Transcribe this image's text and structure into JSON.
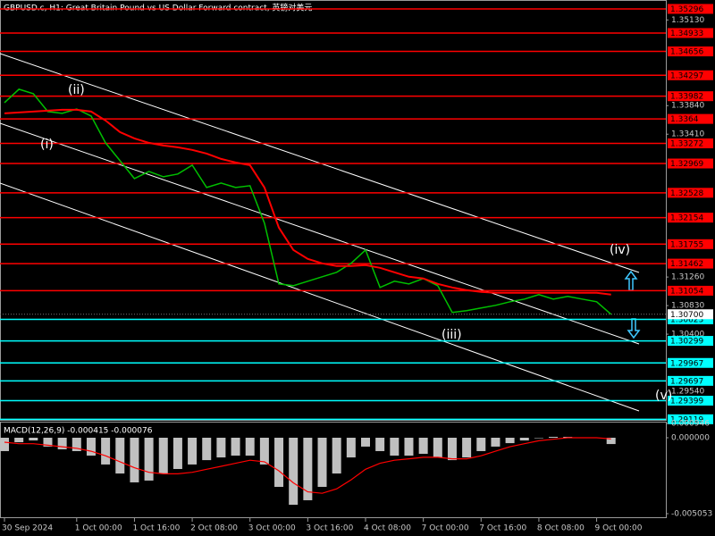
{
  "chart_data": [
    {
      "type": "line",
      "title": "GBPUSD.c, H1:  Great Britain Pound vs US Dollar Forward contract, 英镑对美元",
      "categories": [
        "30 Sep 2024",
        null,
        null,
        null,
        null,
        "1 Oct 00:00",
        null,
        null,
        null,
        "1 Oct 16:00",
        null,
        null,
        null,
        "2 Oct 08:00",
        null,
        null,
        null,
        "3 Oct 00:00",
        null,
        null,
        null,
        "3 Oct 16:00",
        null,
        null,
        null,
        "4 Oct 08:00",
        null,
        null,
        null,
        "7 Oct 00:00",
        null,
        null,
        null,
        "7 Oct 16:00",
        null,
        null,
        null,
        "8 Oct 08:00",
        null,
        null,
        null,
        "9 Oct 00:00",
        null
      ],
      "series": [
        {
          "color": "#00c000",
          "values": [
            1.33885,
            1.34086,
            1.34019,
            1.3375,
            1.33723,
            1.3379,
            1.33683,
            1.3328,
            1.33011,
            1.32742,
            1.3285,
            1.32769,
            1.3281,
            1.32944,
            1.32608,
            1.32675,
            1.32608,
            1.32635,
            1.32071,
            1.31157,
            1.3113,
            1.31197,
            1.31264,
            1.31331,
            1.31466,
            1.31667,
            1.31103,
            1.31197,
            1.31157,
            1.31237,
            1.3113,
            1.30727,
            1.30754,
            1.30794,
            1.30834,
            1.30888,
            1.30928,
            1.30995,
            1.30928,
            1.30969,
            1.30928,
            1.30888,
            1.307
          ]
        },
        {
          "color": "#ff0000",
          "values": [
            1.33723,
            1.33737,
            1.3375,
            1.33764,
            1.33777,
            1.33777,
            1.3375,
            1.33616,
            1.33441,
            1.33347,
            1.3328,
            1.3324,
            1.33213,
            1.33173,
            1.33119,
            1.33038,
            1.32984,
            1.32944,
            1.32608,
            1.32004,
            1.31668,
            1.31533,
            1.31466,
            1.31426,
            1.31426,
            1.31439,
            1.31399,
            1.31332,
            1.31264,
            1.31238,
            1.31157,
            1.31103,
            1.31063,
            1.31036,
            1.31023,
            1.31023,
            1.31023,
            1.31023,
            1.31023,
            1.31023,
            1.31023,
            1.31023,
            1.30996
          ]
        }
      ],
      "ylim": [
        1.2911,
        1.3543
      ],
      "yticks": [
        {
          "value": 1.3513,
          "label": "1.35130"
        },
        {
          "value": 1.3384,
          "label": "1.33840"
        },
        {
          "value": 1.3341,
          "label": "1.33410"
        },
        {
          "value": 1.3126,
          "label": "1.31260"
        },
        {
          "value": 1.3083,
          "label": "1.30830"
        },
        {
          "value": 1.304,
          "label": "1.30400"
        },
        {
          "value": 1.2954,
          "label": "1.29540"
        }
      ],
      "resistance_color": "#ff0000",
      "resistance_levels": [
        1.35296,
        1.34933,
        1.34656,
        1.34297,
        1.33982,
        1.3364,
        1.33272,
        1.32969,
        1.32528,
        1.32154,
        1.31755,
        1.31462,
        1.31054
      ],
      "support_color": "#00ffff",
      "support_levels": [
        1.30623,
        1.30299,
        1.29967,
        1.29697,
        1.29399,
        1.29119
      ],
      "current_price": {
        "value": 1.307,
        "label": "1.30700"
      },
      "wave_labels": [
        "(i)",
        "(ii)",
        "(iii)",
        "(iv)",
        "(v)"
      ]
    },
    {
      "type": "bar",
      "title": "MACD(12,26,9) -0.000415 -0.000076",
      "color": "#c0c0c0",
      "values": [
        -0.00089,
        -0.0003,
        -0.00018,
        -0.00059,
        -0.00077,
        -0.00089,
        -0.00119,
        -0.00178,
        -0.00238,
        -0.00297,
        -0.00285,
        -0.00238,
        -0.00208,
        -0.00178,
        -0.00149,
        -0.00131,
        -0.00119,
        -0.00119,
        -0.00178,
        -0.00327,
        -0.00446,
        -0.00416,
        -0.00327,
        -0.00238,
        -0.00131,
        -0.00059,
        -0.00089,
        -0.00119,
        -0.00119,
        -0.00107,
        -0.00131,
        -0.00149,
        -0.00131,
        -0.00089,
        -0.00059,
        -0.00036,
        -0.00018,
        0,
        6e-05,
        6e-05,
        0,
        0,
        -0.00042
      ],
      "signal": {
        "color": "#ff0000",
        "values": [
          -0.0003,
          -0.0004,
          -0.0004,
          -0.0005,
          -0.0006,
          -0.0007,
          -0.0009,
          -0.0012,
          -0.0016,
          -0.002,
          -0.0023,
          -0.0024,
          -0.0024,
          -0.0023,
          -0.0021,
          -0.0019,
          -0.0017,
          -0.0015,
          -0.0016,
          -0.0022,
          -0.003,
          -0.0036,
          -0.0037,
          -0.0034,
          -0.0028,
          -0.0021,
          -0.0017,
          -0.0015,
          -0.0014,
          -0.0013,
          -0.0013,
          -0.0014,
          -0.0014,
          -0.0012,
          -0.0009,
          -0.0006,
          -0.0004,
          -0.0002,
          -0.0001,
          0,
          0,
          0,
          -8e-05
        ]
      },
      "ylim": [
        -0.00535,
        0.00107
      ],
      "yticks": [
        0.000946,
        {
          "value": 0,
          "label": "0.000000"
        },
        -0.005053
      ]
    }
  ]
}
